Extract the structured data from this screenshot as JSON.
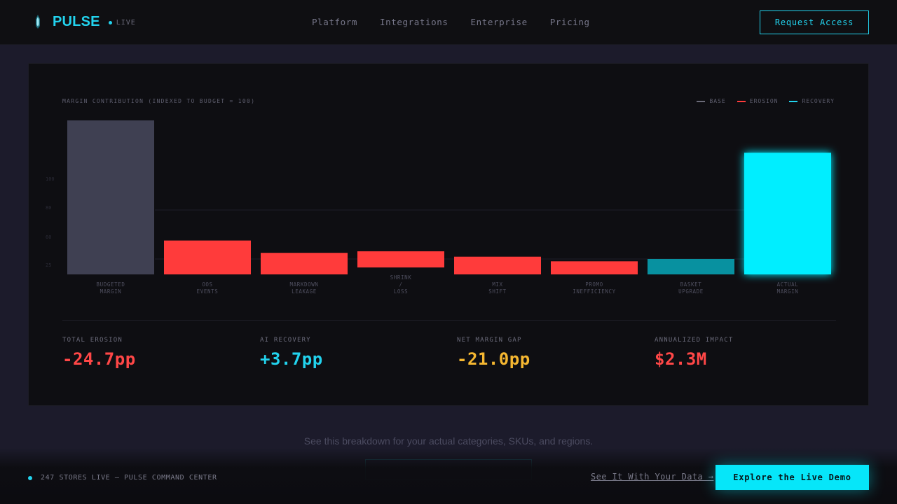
{
  "header": {
    "brand": "PULSE",
    "live_label": "LIVE",
    "nav": [
      "Platform",
      "Integrations",
      "Enterprise",
      "Pricing"
    ],
    "request_label": "Request Access"
  },
  "colors": {
    "accent": "#22d3ee",
    "base": "#3f4052",
    "erosion": "#ff3b3b",
    "recovery": "#0891a0",
    "actual": "#00eeff",
    "gap": "#f5b731"
  },
  "chart_data": {
    "type": "bar",
    "subtype": "waterfall",
    "title": "MARGIN CONTRIBUTION (INDEXED TO BUDGET = 100)",
    "legend": [
      "BASE",
      "EROSION",
      "RECOVERY"
    ],
    "legend_placement": "top-right",
    "y_ticks": [
      "100",
      "80",
      "60",
      "25"
    ],
    "categories": [
      "BUDGETED\nMARGIN",
      "OOS\nEVENTS",
      "MARKDOWN\nLEAKAGE",
      "SHRINK\n/\nLOSS",
      "MIX\nSHIFT",
      "PROMO\nINEFFICIENCY",
      "BASKET\nUPGRADE",
      "ACTUAL\nMARGIN"
    ],
    "bars": [
      {
        "kind": "base",
        "start": 0,
        "end": 100
      },
      {
        "kind": "erosion",
        "start": 0,
        "end": 22
      },
      {
        "kind": "erosion",
        "start": 0,
        "end": 14
      },
      {
        "kind": "erosion",
        "start": 4.5,
        "end": 15
      },
      {
        "kind": "erosion",
        "start": 0,
        "end": 11.5
      },
      {
        "kind": "erosion",
        "start": 0,
        "end": 8.5
      },
      {
        "kind": "recovery",
        "start": 0,
        "end": 10
      },
      {
        "kind": "actual",
        "start": 0,
        "end": 79
      }
    ],
    "ylim": [
      0,
      100
    ],
    "grid": true
  },
  "stats": [
    {
      "label": "TOTAL EROSION",
      "value": "-24.7pp",
      "color": "#ff4747"
    },
    {
      "label": "AI RECOVERY",
      "value": "+3.7pp",
      "color": "#22d3ee"
    },
    {
      "label": "NET MARGIN GAP",
      "value": "-21.0pp",
      "color": "#f5b731"
    },
    {
      "label": "ANNUALIZED IMPACT",
      "value": "$2.3M",
      "color": "#ff4747"
    }
  ],
  "cta": {
    "text": "See this breakdown for your actual categories, SKUs, and regions."
  },
  "bottom": {
    "status": "247 STORES LIVE — PULSE COMMAND CENTER",
    "see_link": "See It With Your Data →",
    "explore_label": "Explore the Live Demo"
  }
}
